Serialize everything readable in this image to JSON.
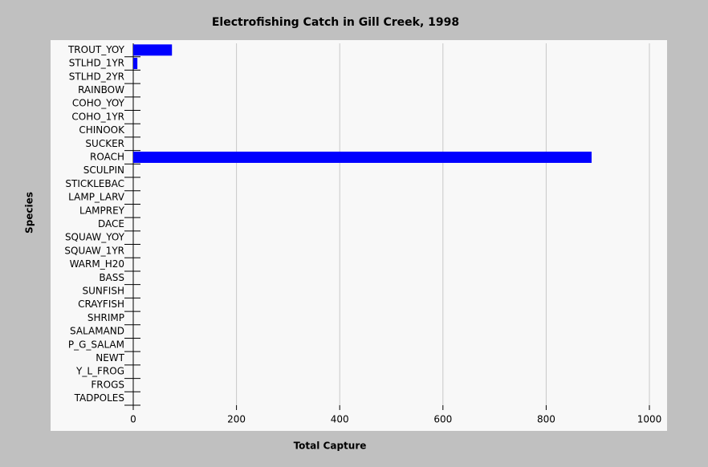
{
  "chart_data": {
    "type": "hbar",
    "title": "Electrofishing Catch in Gill Creek, 1998",
    "xlabel": "Total Capture",
    "ylabel": "Species",
    "categories": [
      "TROUT_YOY",
      "STLHD_1YR",
      "STLHD_2YR",
      "RAINBOW",
      "COHO_YOY",
      "COHO_1YR",
      "CHINOOK",
      "SUCKER",
      "ROACH",
      "SCULPIN",
      "STICKLEBAC",
      "LAMP_LARV",
      "LAMPREY",
      "DACE",
      "SQUAW_YOY",
      "SQUAW_1YR",
      "WARM_H20",
      "BASS",
      "SUNFISH",
      "CRAYFISH",
      "SHRIMP",
      "SALAMAND",
      "P_G_SALAM",
      "NEWT",
      "Y_L_FROG",
      "FROGS",
      "TADPOLES"
    ],
    "values": [
      75,
      8,
      0,
      0,
      0,
      0,
      0,
      0,
      888,
      0,
      0,
      0,
      0,
      0,
      0,
      0,
      0,
      0,
      0,
      0,
      0,
      0,
      0,
      0,
      0,
      0,
      0
    ],
    "color": "#0000ff",
    "xlim": [
      0,
      1000
    ],
    "xticks": [
      0,
      200,
      400,
      600,
      800,
      1000
    ],
    "grid": true
  }
}
